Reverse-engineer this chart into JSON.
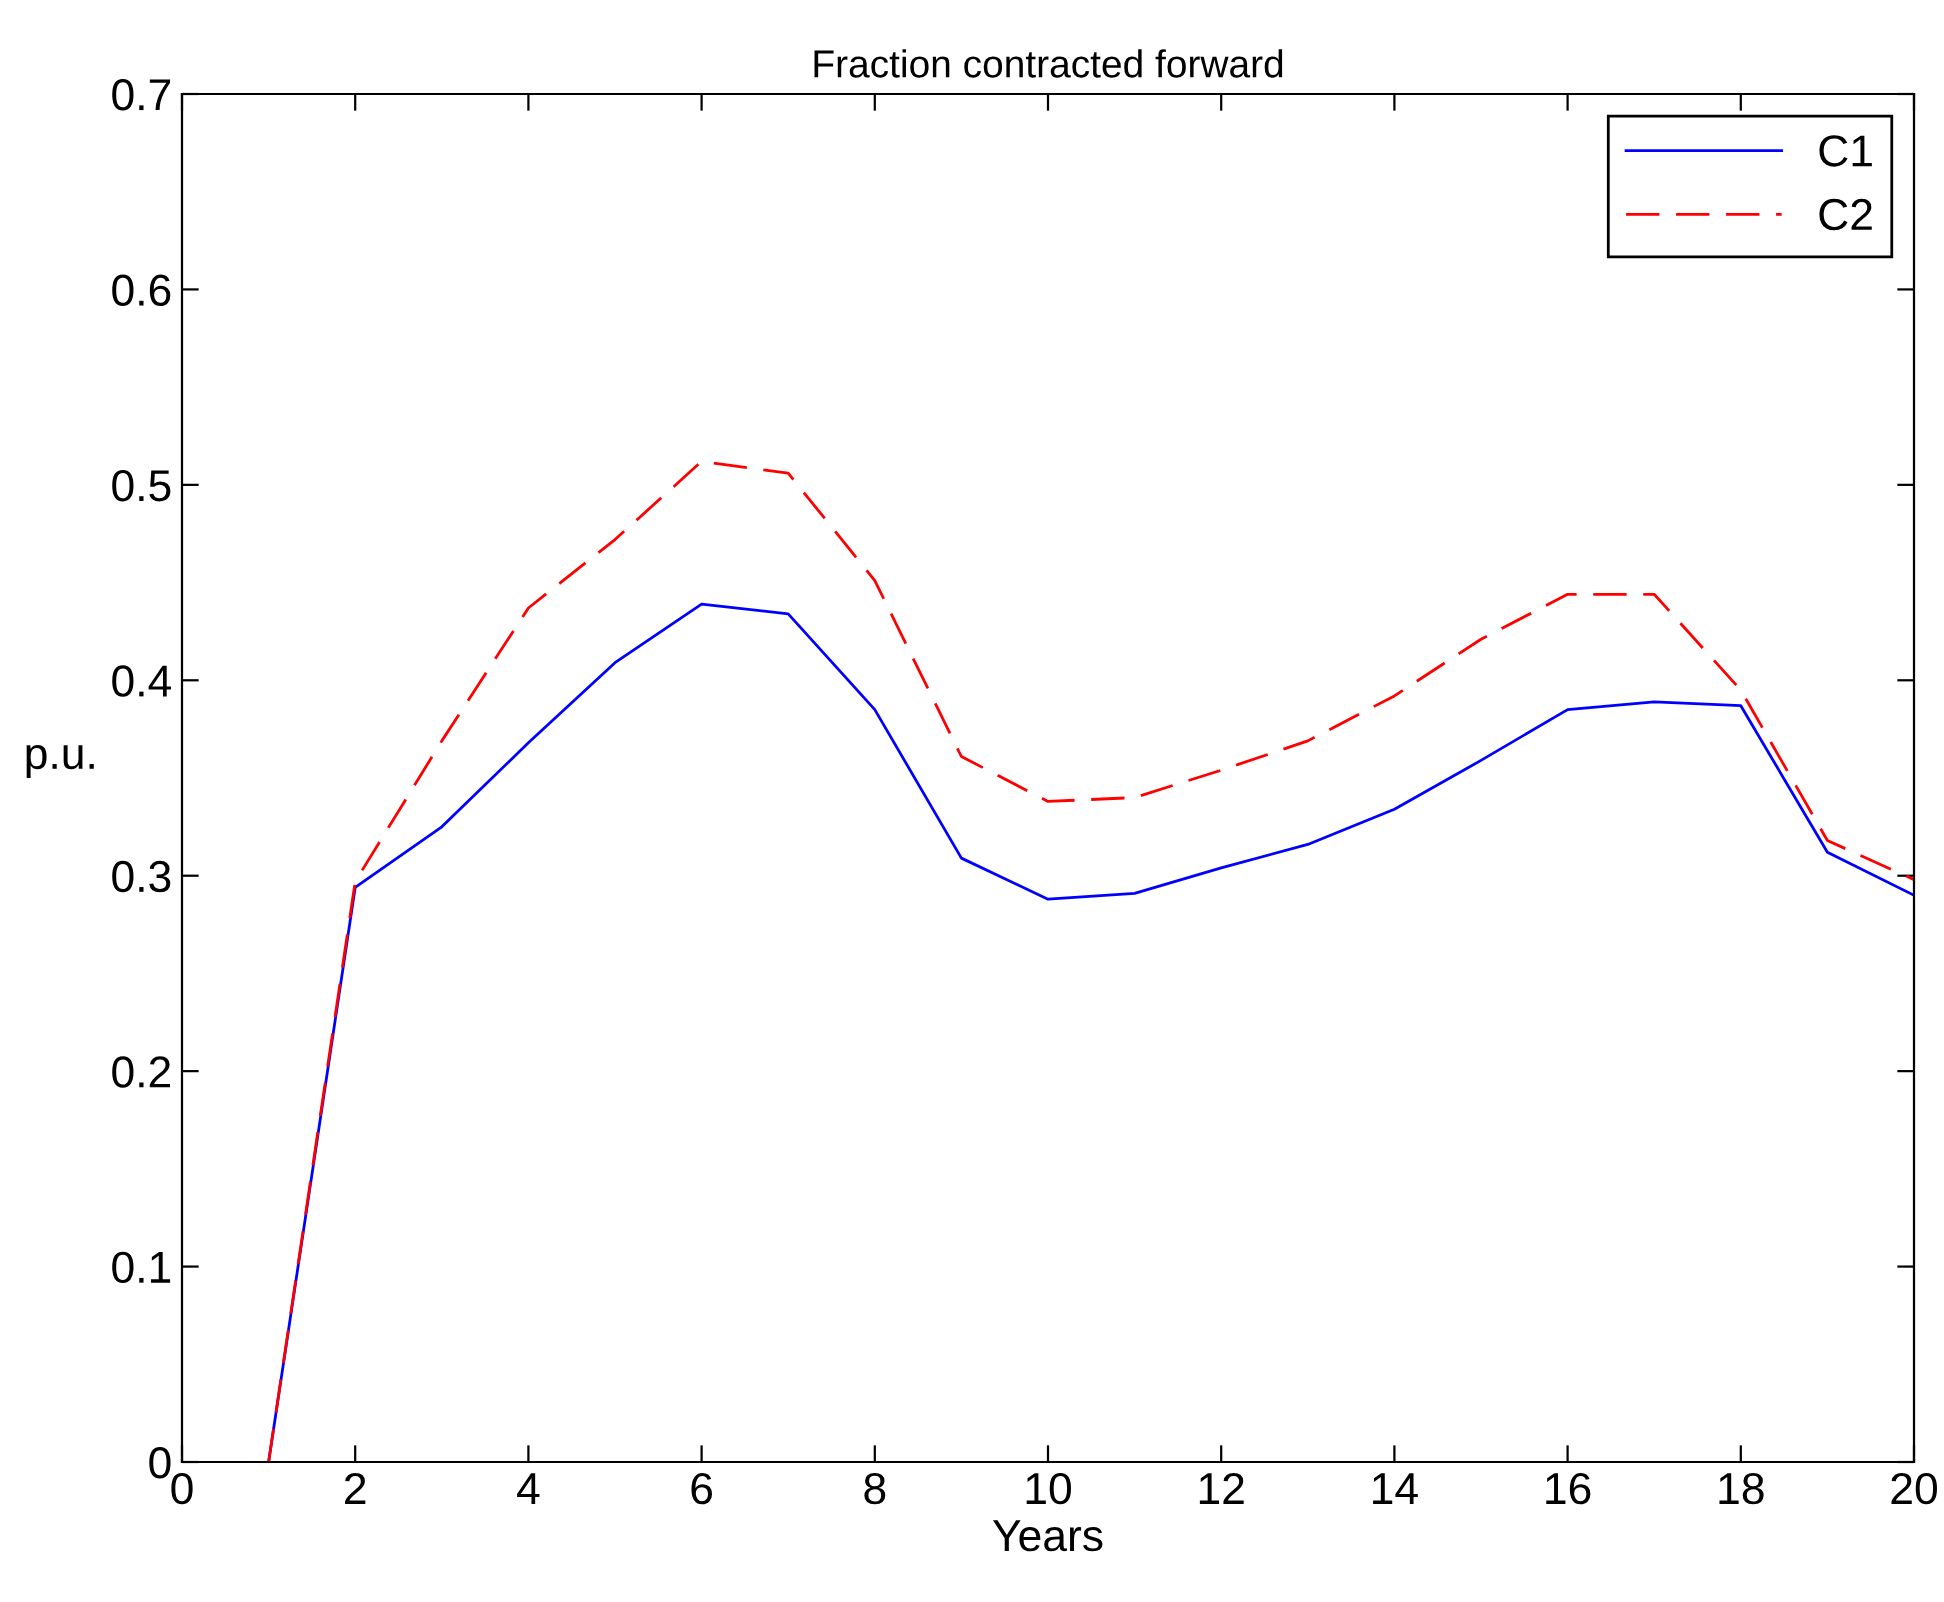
{
  "chart_data": {
    "type": "line",
    "title": "Fraction contracted forward",
    "xlabel": "Years",
    "ylabel": "p.u.",
    "x": [
      1,
      2,
      3,
      4,
      5,
      6,
      7,
      8,
      9,
      10,
      11,
      12,
      13,
      14,
      15,
      16,
      17,
      18,
      19,
      20
    ],
    "series": [
      {
        "name": "C1",
        "color": "#0000ff",
        "line_style": "solid",
        "values": [
          0,
          0.294,
          0.325,
          0.368,
          0.409,
          0.439,
          0.434,
          0.385,
          0.309,
          0.288,
          0.291,
          0.304,
          0.316,
          0.334,
          0.359,
          0.385,
          0.389,
          0.387,
          0.312,
          0.29
        ]
      },
      {
        "name": "C2",
        "color": "#ff0000",
        "line_style": "dashed",
        "values": [
          0,
          0.297,
          0.369,
          0.437,
          0.472,
          0.512,
          0.506,
          0.451,
          0.361,
          0.338,
          0.34,
          0.354,
          0.369,
          0.392,
          0.421,
          0.444,
          0.444,
          0.395,
          0.318,
          0.298
        ]
      }
    ],
    "xlim": [
      0,
      20
    ],
    "xticks": [
      0,
      2,
      4,
      6,
      8,
      10,
      12,
      14,
      16,
      18,
      20
    ],
    "ylim": [
      0,
      0.7
    ],
    "yticks": [
      0,
      0.1,
      0.2,
      0.3,
      0.4,
      0.5,
      0.6,
      0.7
    ],
    "grid": false,
    "legend": "top right"
  }
}
